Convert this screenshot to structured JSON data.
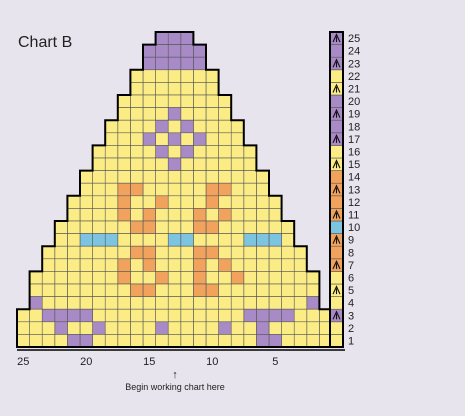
{
  "title": "Chart B",
  "begin_note": "Begin working chart here",
  "begin_arrow": "↑",
  "colors": {
    "background": "#e8e4ee",
    "yellow": "#fbec85",
    "purple": "#a88ac6",
    "orange": "#f1a25c",
    "blue": "#7cc4e0",
    "grid": "#555555",
    "outline": "#000000"
  },
  "bottom_axis": [
    "25",
    "20",
    "15",
    "10",
    "5"
  ],
  "row_labels": [
    "1",
    "2",
    "3",
    "4",
    "5",
    "6",
    "7",
    "8",
    "9",
    "10",
    "11",
    "12",
    "13",
    "14",
    "15",
    "16",
    "17",
    "18",
    "19",
    "20",
    "21",
    "22",
    "23",
    "24",
    "25"
  ],
  "key_rows": [
    {
      "row": 1,
      "color": "yellow",
      "icon": "none"
    },
    {
      "row": 2,
      "color": "yellow",
      "icon": "none"
    },
    {
      "row": 3,
      "color": "purple",
      "icon": "slip-stitch-icon"
    },
    {
      "row": 4,
      "color": "yellow",
      "icon": "none"
    },
    {
      "row": 5,
      "color": "yellow",
      "icon": "slip-stitch-icon"
    },
    {
      "row": 6,
      "color": "yellow",
      "icon": "none"
    },
    {
      "row": 7,
      "color": "orange",
      "icon": "slip-stitch-icon"
    },
    {
      "row": 8,
      "color": "orange",
      "icon": "none"
    },
    {
      "row": 9,
      "color": "orange",
      "icon": "slip-stitch-icon"
    },
    {
      "row": 10,
      "color": "blue",
      "icon": "none"
    },
    {
      "row": 11,
      "color": "orange",
      "icon": "slip-stitch-icon"
    },
    {
      "row": 12,
      "color": "orange",
      "icon": "none"
    },
    {
      "row": 13,
      "color": "orange",
      "icon": "slip-stitch-icon"
    },
    {
      "row": 14,
      "color": "orange",
      "icon": "none"
    },
    {
      "row": 15,
      "color": "yellow",
      "icon": "slip-stitch-icon"
    },
    {
      "row": 16,
      "color": "yellow",
      "icon": "none"
    },
    {
      "row": 17,
      "color": "purple",
      "icon": "slip-stitch-icon"
    },
    {
      "row": 18,
      "color": "purple",
      "icon": "none"
    },
    {
      "row": 19,
      "color": "purple",
      "icon": "slip-stitch-icon"
    },
    {
      "row": 20,
      "color": "purple",
      "icon": "none"
    },
    {
      "row": 21,
      "color": "yellow",
      "icon": "slip-stitch-icon"
    },
    {
      "row": 22,
      "color": "yellow",
      "icon": "none"
    },
    {
      "row": 23,
      "color": "purple",
      "icon": "slip-stitch-icon"
    },
    {
      "row": 24,
      "color": "purple",
      "icon": "none"
    },
    {
      "row": 25,
      "color": "purple",
      "icon": "slip-stitch-icon"
    }
  ],
  "pattern": {
    "columns": 25,
    "rows_top_to_bottom": [
      ".......... . ....",
      "",
      "",
      "",
      "",
      "",
      "",
      "",
      "",
      "",
      "",
      "",
      "",
      "",
      "",
      "",
      "",
      "",
      "",
      "",
      "",
      "",
      "",
      "",
      ""
    ],
    "rows": [
      {
        "row": 25,
        "from": 12,
        "to": 14,
        "cells": "PPP"
      },
      {
        "row": 24,
        "from": 11,
        "to": 15,
        "cells": "PPPPP"
      },
      {
        "row": 23,
        "from": 11,
        "to": 15,
        "cells": "PPPPP"
      },
      {
        "row": 22,
        "from": 10,
        "to": 16,
        "cells": "YYYYYYY"
      },
      {
        "row": 21,
        "from": 10,
        "to": 16,
        "cells": "YYYYYYY"
      },
      {
        "row": 20,
        "from": 9,
        "to": 17,
        "cells": "YYYYYYYYY"
      },
      {
        "row": 19,
        "from": 9,
        "to": 17,
        "cells": "YYYYPYYYY"
      },
      {
        "row": 18,
        "from": 8,
        "to": 18,
        "cells": "YYYYPYPYYYY"
      },
      {
        "row": 17,
        "from": 8,
        "to": 18,
        "cells": "YYYPYPYPYYY"
      },
      {
        "row": 16,
        "from": 7,
        "to": 19,
        "cells": "YYYYYPYPYYYYY"
      },
      {
        "row": 15,
        "from": 7,
        "to": 19,
        "cells": "YYYYYYPYYYYYY"
      },
      {
        "row": 14,
        "from": 6,
        "to": 20,
        "cells": "YYYYYYYYYYYYYYY"
      },
      {
        "row": 13,
        "from": 6,
        "to": 20,
        "cells": "YYYOOYYYYYOOYYY"
      },
      {
        "row": 12,
        "from": 5,
        "to": 21,
        "cells": "YYYYOYYOYYYOYYYYY"
      },
      {
        "row": 11,
        "from": 5,
        "to": 21,
        "cells": "YYYYOYOYYYOYOYYYY"
      },
      {
        "row": 10,
        "from": 4,
        "to": 22,
        "cells": "YYYYYYOOYYYOOYYYYYY"
      },
      {
        "row": 9,
        "from": 4,
        "to": 22,
        "cells": "YYBBBYYYYBBYYYYBBBY"
      },
      {
        "row": 8,
        "from": 3,
        "to": 23,
        "cells": "YYYYYYYOOYYYOOYYYYYYY"
      },
      {
        "row": 7,
        "from": 3,
        "to": 23,
        "cells": "YYYYYYOYOYYYOYOYYYYYY"
      },
      {
        "row": 6,
        "from": 2,
        "to": 24,
        "cells": "YYYYYYYOYYOYYOYYOYYYYYY"
      },
      {
        "row": 5,
        "from": 2,
        "to": 24,
        "cells": "YYYYYYYYOOYYYOOYYYYYYYY"
      },
      {
        "row": 4,
        "from": 2,
        "to": 24,
        "cells": "PYYYYYYYYYYYYYYYYYYYYYP"
      },
      {
        "row": 3,
        "from": 1,
        "to": 25,
        "cells": "YYPPPPYYYYYYYYYYYYPPPPYYY"
      },
      {
        "row": 2,
        "from": 1,
        "to": 25,
        "cells": "YYYPYYPYYYYPYYYYPYYPYYYYY"
      },
      {
        "row": 1,
        "from": 1,
        "to": 25,
        "cells": "YYYYPPYYYYYYYYYYYYYPPYYYY"
      }
    ]
  }
}
